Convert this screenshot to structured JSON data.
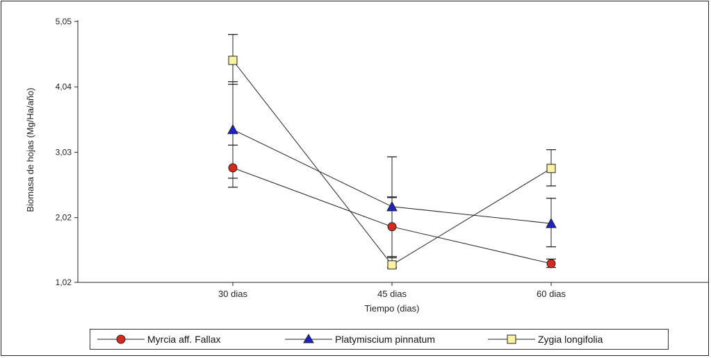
{
  "chart_data": {
    "type": "line",
    "title": "",
    "xlabel": "Tiempo (dias)",
    "ylabel": "Biomasa de hojas (Mg/Ha/año)",
    "categories": [
      "30 dias",
      "45 dias",
      "60 dias"
    ],
    "y_ticks": [
      "1,02",
      "2,02",
      "3,03",
      "4,04",
      "5,05"
    ],
    "y_tick_values": [
      1.02,
      2.02,
      3.03,
      4.04,
      5.05
    ],
    "ylim": [
      1.02,
      5.05
    ],
    "grid": false,
    "legend_position": "bottom",
    "series": [
      {
        "name": "Myrcia aff. Fallax",
        "marker": "circle",
        "color": "#d62a1e",
        "values": [
          2.79,
          1.88,
          1.31
        ],
        "err_low": [
          2.49,
          1.4,
          1.25
        ],
        "err_high": [
          3.14,
          2.34,
          1.38
        ]
      },
      {
        "name": "Platymiscium pinnatum",
        "marker": "triangle",
        "color": "#1e22c8",
        "values": [
          3.38,
          2.19,
          1.93
        ],
        "err_low": [
          2.63,
          1.42,
          1.57
        ],
        "err_high": [
          4.12,
          2.33,
          2.32
        ]
      },
      {
        "name": "Zygia longifolia",
        "marker": "square",
        "color": "#fbf2a2",
        "values": [
          4.45,
          1.29,
          2.78
        ],
        "err_low": [
          4.08,
          1.25,
          2.51
        ],
        "err_high": [
          4.85,
          2.96,
          3.07
        ]
      }
    ]
  }
}
